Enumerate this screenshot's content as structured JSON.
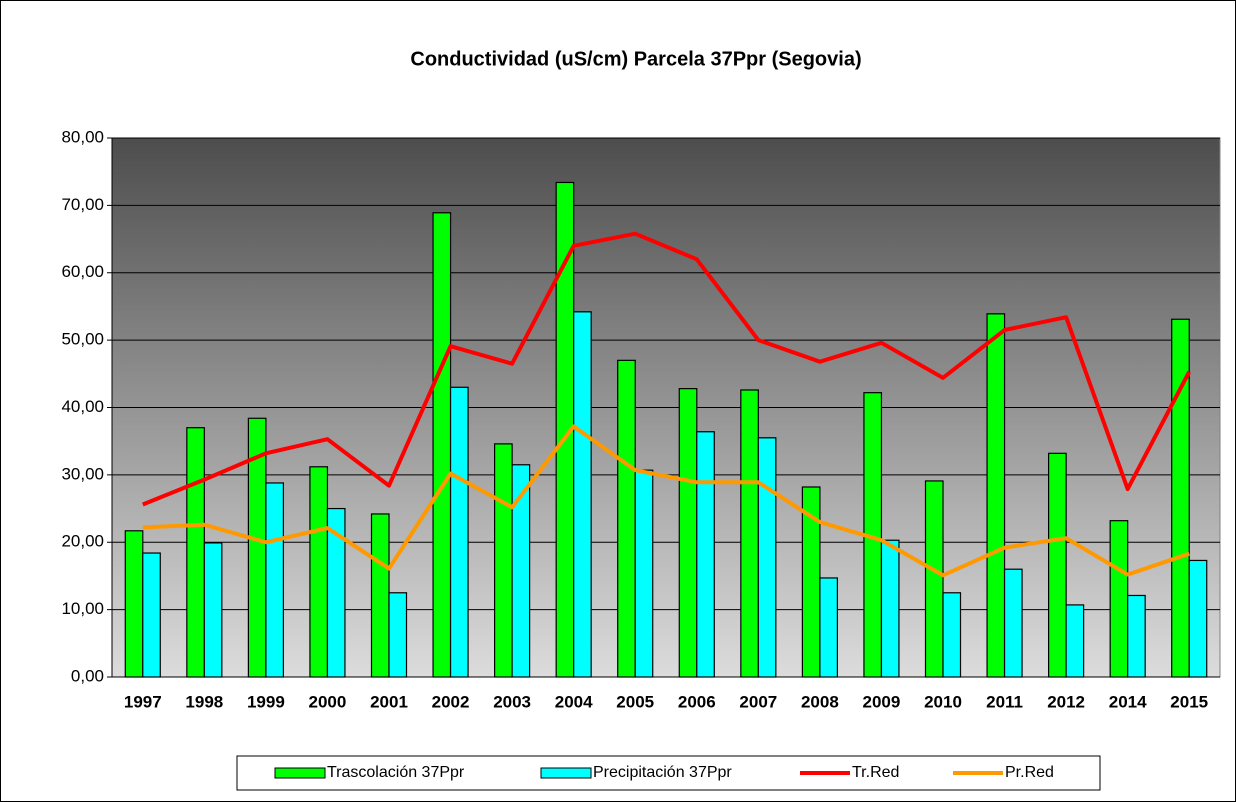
{
  "chart_data": {
    "type": "bar-line",
    "title": "Conductividad (uS/cm) Parcela 37Ppr (Segovia)",
    "categories": [
      "1997",
      "1998",
      "1999",
      "2000",
      "2001",
      "2002",
      "2003",
      "2004",
      "2005",
      "2006",
      "2007",
      "2008",
      "2009",
      "2010",
      "2011",
      "2012",
      "2014",
      "2015"
    ],
    "series": [
      {
        "name": "Trascolación  37Ppr",
        "type": "bar",
        "color": "#00ff00",
        "values": [
          21.7,
          37.0,
          38.4,
          31.2,
          24.2,
          68.9,
          34.6,
          73.4,
          47.0,
          42.8,
          42.6,
          28.2,
          42.2,
          29.1,
          53.9,
          33.2,
          23.2,
          53.1
        ]
      },
      {
        "name": "Precipitación 37Ppr",
        "type": "bar",
        "color": "#00ffff",
        "values": [
          18.4,
          19.9,
          28.8,
          25.0,
          12.5,
          43.0,
          31.5,
          54.2,
          30.7,
          36.4,
          35.5,
          14.7,
          20.3,
          12.5,
          16.0,
          10.7,
          12.1,
          17.3
        ]
      },
      {
        "name": "Tr.Red",
        "type": "line",
        "color": "#ff0000",
        "values": [
          25.6,
          29.3,
          33.2,
          35.3,
          28.4,
          49.1,
          46.5,
          64.0,
          65.8,
          62.0,
          50.0,
          46.8,
          49.6,
          44.4,
          51.5,
          53.4,
          27.9,
          45.3
        ]
      },
      {
        "name": "Pr.Red",
        "type": "line",
        "color": "#ff9900",
        "values": [
          22.2,
          22.6,
          20.0,
          22.1,
          16.1,
          30.2,
          25.2,
          37.2,
          30.7,
          28.9,
          28.9,
          23.0,
          20.3,
          15.1,
          19.2,
          20.6,
          15.2,
          18.3
        ]
      }
    ],
    "ylim": [
      0,
      80
    ],
    "yticks": [
      {
        "value": 0,
        "label": "0,00"
      },
      {
        "value": 10,
        "label": "10,00"
      },
      {
        "value": 20,
        "label": "20,00"
      },
      {
        "value": 30,
        "label": "30,00"
      },
      {
        "value": 40,
        "label": "40,00"
      },
      {
        "value": 50,
        "label": "50,00"
      },
      {
        "value": 60,
        "label": "60,00"
      },
      {
        "value": 70,
        "label": "70,00"
      },
      {
        "value": 80,
        "label": "80,00"
      }
    ],
    "grid": true
  }
}
